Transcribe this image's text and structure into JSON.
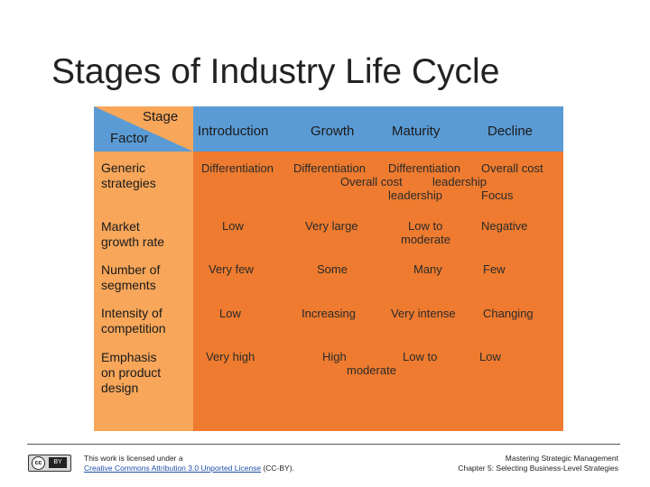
{
  "title": "Stages of Industry Life Cycle",
  "table": {
    "corner": {
      "stage_label": "Stage",
      "factor_label": "Factor"
    },
    "columns": [
      "Introduction",
      "Growth",
      "Maturity",
      "Decline"
    ],
    "rows": [
      {
        "label_line1": "Generic",
        "label_line2": "strategies",
        "cells": [
          "Differentiation",
          "Differentiation",
          "Differentiation",
          "Overall cost",
          "Overall cost",
          "leadership",
          "leadership",
          "Focus"
        ]
      },
      {
        "label_line1": "Market",
        "label_line2": "growth rate",
        "cells": [
          "Low",
          "Very large",
          "Low to",
          "moderate",
          "Negative"
        ]
      },
      {
        "label_line1": "Number of",
        "label_line2": "segments",
        "cells": [
          "Very few",
          "Some",
          "Many",
          "Few"
        ]
      },
      {
        "label_line1": "Intensity of",
        "label_line2": "competition",
        "cells": [
          "Low",
          "Increasing",
          "Very intense",
          "Changing"
        ]
      },
      {
        "label_line1": "Emphasis",
        "label_line2": "on product",
        "label_line3": "design",
        "cells": [
          "Very high",
          "High",
          "Low to",
          "moderate",
          "Low"
        ]
      }
    ]
  },
  "footer": {
    "license_prefix": "This work is licensed under a",
    "license_link": "Creative Commons Attribution 3.0 Unported License",
    "license_suffix": "(CC-BY).",
    "book_title": "Mastering Strategic Management",
    "chapter": "Chapter 5: Selecting Business-Level Strategies",
    "cc_badge_cc": "cc",
    "cc_badge_by": "BY"
  },
  "colors": {
    "header": "#5b9bd5",
    "body": "#ee7b2f",
    "left_column": "#f7a65a"
  }
}
